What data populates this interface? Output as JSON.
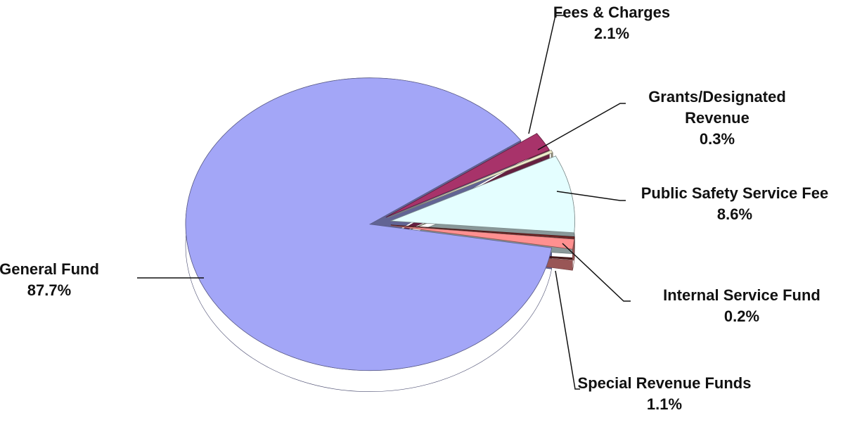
{
  "chart_data": {
    "type": "pie",
    "categories": [
      "General Fund",
      "Fees & Charges",
      "Grants/Designated Revenue",
      "Public Safety Service Fee",
      "Internal Service Fund",
      "Special Revenue Funds"
    ],
    "values": [
      87.7,
      2.1,
      0.3,
      8.6,
      0.2,
      1.1
    ],
    "value_labels": [
      "87.7%",
      "2.1%",
      "0.3%",
      "8.6%",
      "0.2%",
      "1.1%"
    ],
    "colors": [
      "#a3a6f7",
      "#a8336a",
      "#efebcb",
      "#e4feff",
      "#7b2a2a",
      "#ff9090"
    ]
  }
}
